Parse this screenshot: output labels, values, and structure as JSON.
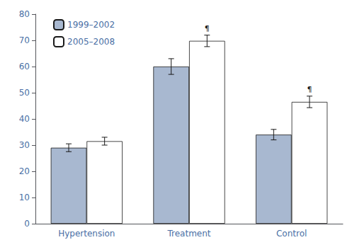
{
  "chart_data": {
    "type": "bar",
    "categories": [
      "Hypertension",
      "Treatment",
      "Control"
    ],
    "series": [
      {
        "name": "1999–2002",
        "color": "#a8b8d0",
        "values": [
          29.0,
          60.0,
          34.0
        ],
        "errors": [
          1.5,
          3.0,
          2.0
        ]
      },
      {
        "name": "2005–2008",
        "color": "#ffffff",
        "values": [
          31.5,
          69.8,
          46.5
        ],
        "errors": [
          1.5,
          2.2,
          2.2
        ]
      }
    ],
    "annotations": [
      {
        "text": "¶",
        "series": "2005–2008",
        "category": "Treatment"
      },
      {
        "text": "¶",
        "series": "2005–2008",
        "category": "Control"
      }
    ],
    "ylim": [
      0,
      80
    ],
    "yticks": [
      0,
      10,
      20,
      30,
      40,
      50,
      60,
      70,
      80
    ],
    "grid": false,
    "legend": "upper left"
  }
}
